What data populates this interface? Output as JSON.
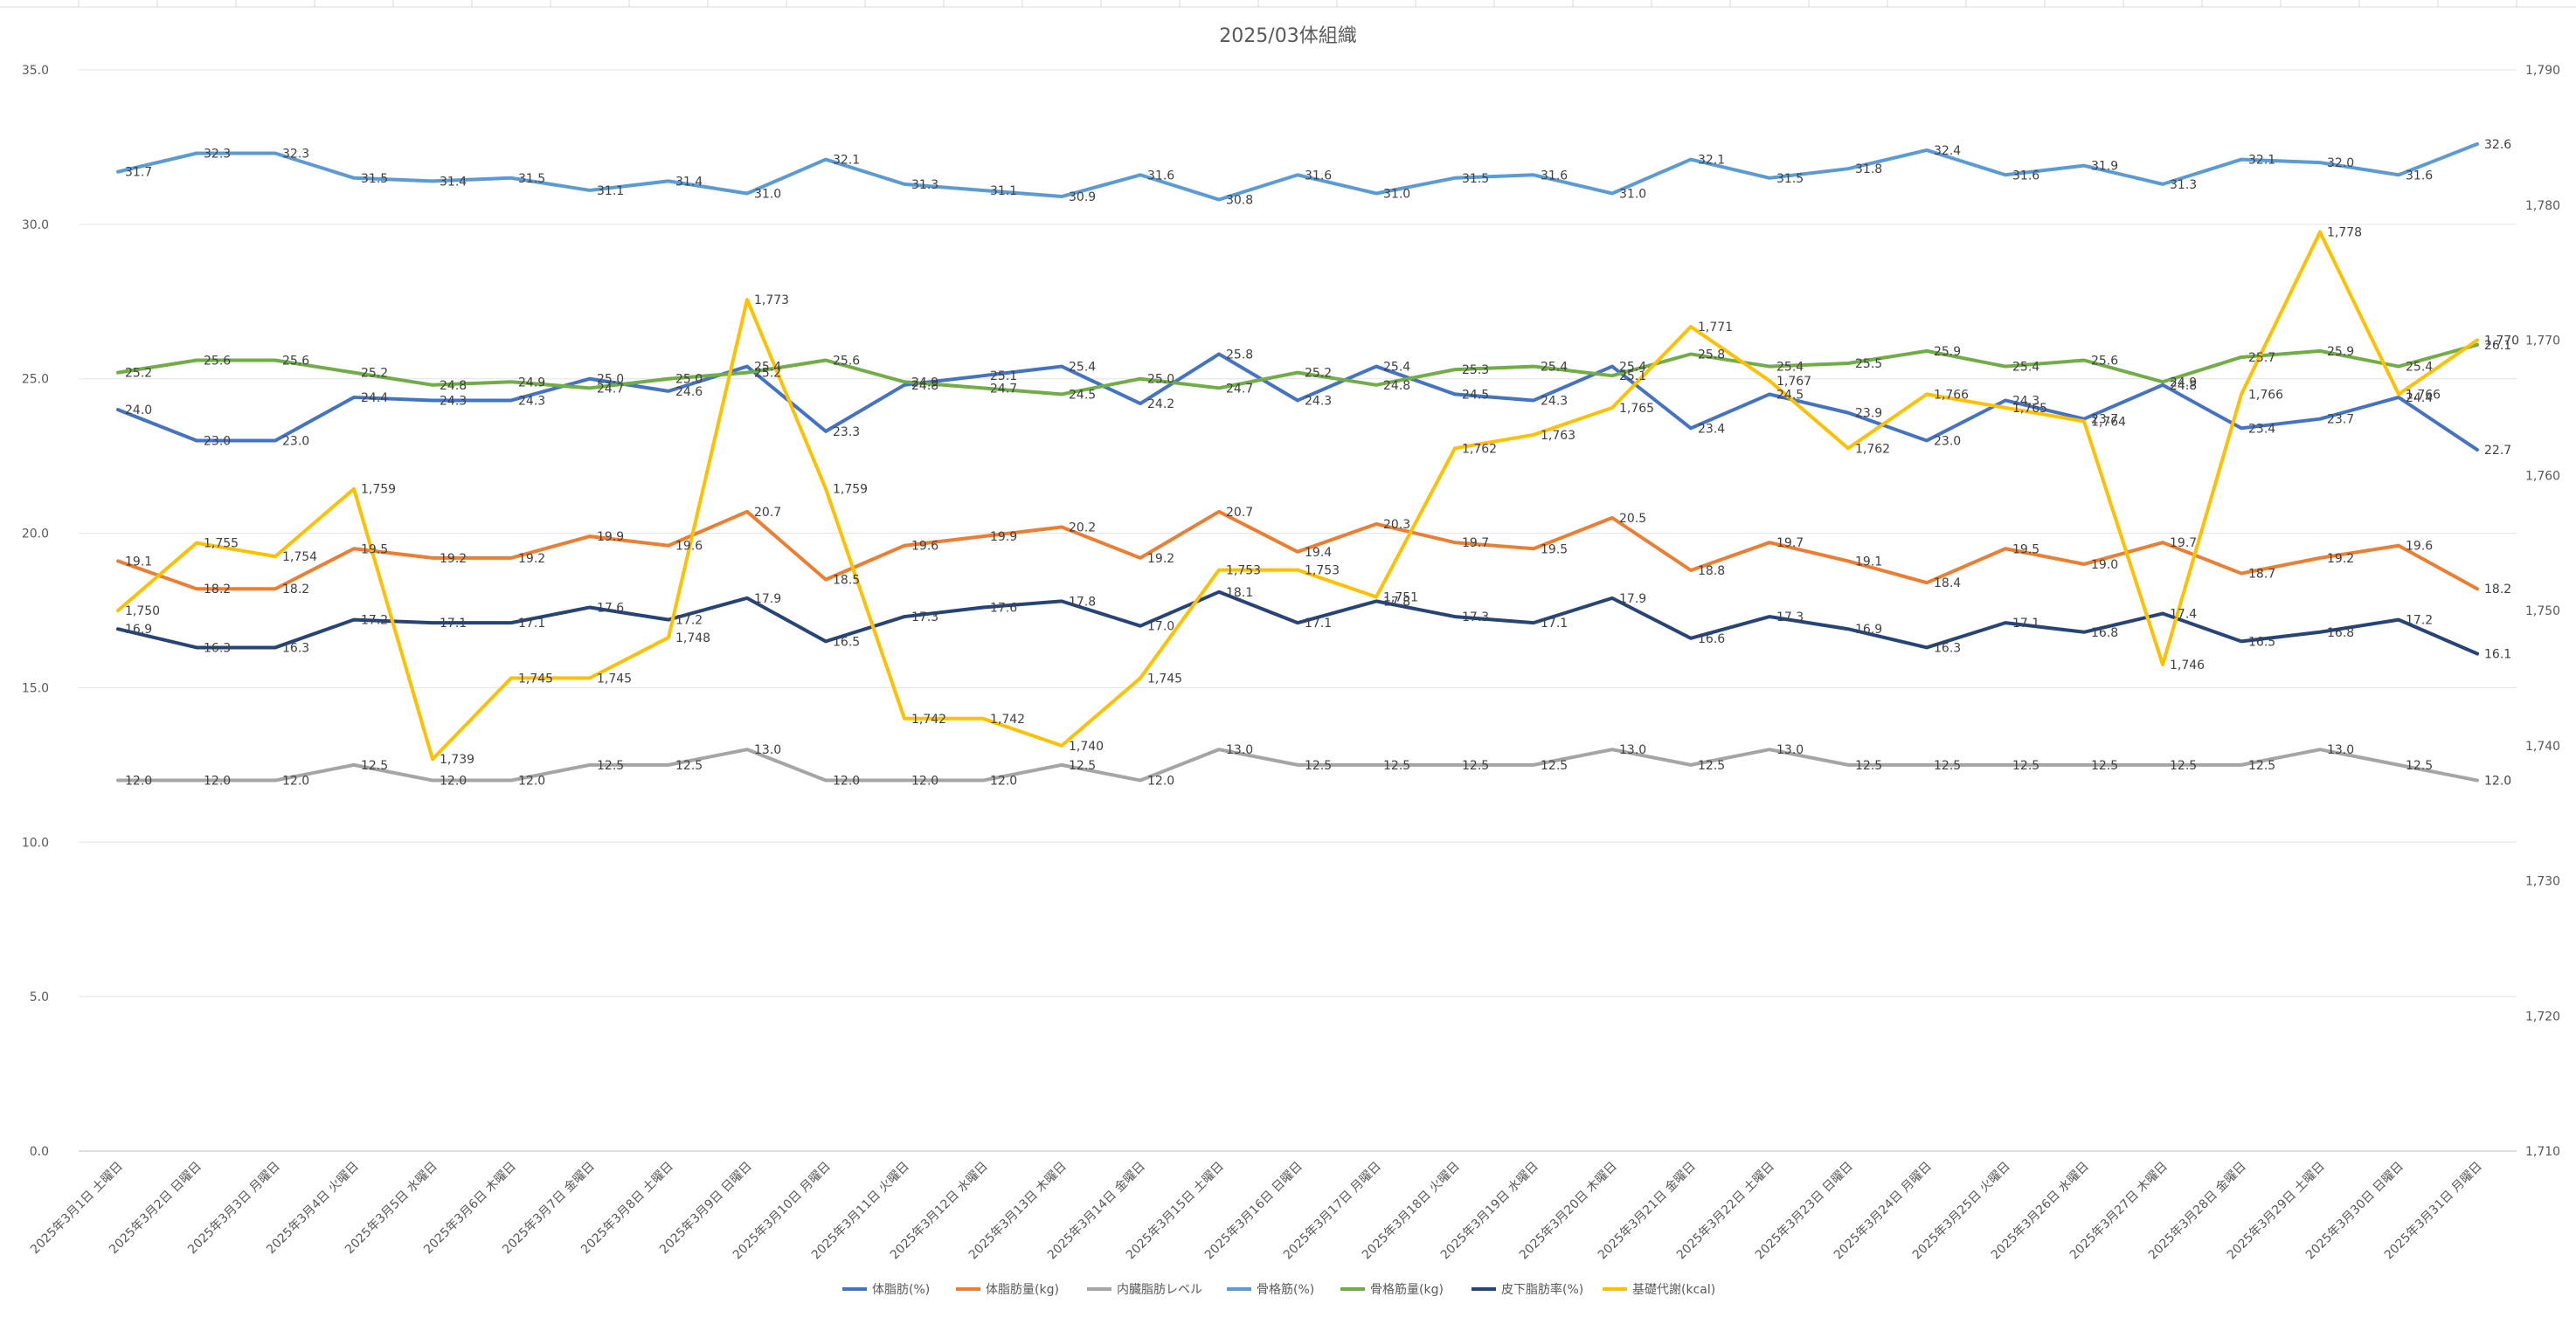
{
  "chart_data": {
    "type": "line",
    "title": "2025/03体組織",
    "categories": [
      "2025年3月1日 土曜日",
      "2025年3月2日 日曜日",
      "2025年3月3日 月曜日",
      "2025年3月4日 火曜日",
      "2025年3月5日 水曜日",
      "2025年3月6日 木曜日",
      "2025年3月7日 金曜日",
      "2025年3月8日 土曜日",
      "2025年3月9日 日曜日",
      "2025年3月10日 月曜日",
      "2025年3月11日 火曜日",
      "2025年3月12日 水曜日",
      "2025年3月13日 木曜日",
      "2025年3月14日 金曜日",
      "2025年3月15日 土曜日",
      "2025年3月16日 日曜日",
      "2025年3月17日 月曜日",
      "2025年3月18日 火曜日",
      "2025年3月19日 水曜日",
      "2025年3月20日 木曜日",
      "2025年3月21日 金曜日",
      "2025年3月22日 土曜日",
      "2025年3月23日 日曜日",
      "2025年3月24日 月曜日",
      "2025年3月25日 火曜日",
      "2025年3月26日 水曜日",
      "2025年3月27日 木曜日",
      "2025年3月28日 金曜日",
      "2025年3月29日 土曜日",
      "2025年3月30日 日曜日",
      "2025年3月31日 月曜日"
    ],
    "y_left": {
      "min": 0,
      "max": 35,
      "ticks": [
        "0.0",
        "5.0",
        "10.0",
        "15.0",
        "20.0",
        "25.0",
        "30.0",
        "35.0"
      ]
    },
    "y_right": {
      "min": 1710,
      "max": 1790,
      "ticks": [
        "1,710",
        "1,720",
        "1,730",
        "1,740",
        "1,750",
        "1,760",
        "1,770",
        "1,780",
        "1,790"
      ]
    },
    "grid": true,
    "legend_position": "bottom",
    "series": [
      {
        "name": "体脂肪(%)",
        "color": "#4472c4",
        "axis": "left",
        "values": [
          24.0,
          23.0,
          23.0,
          24.4,
          24.3,
          24.3,
          25.0,
          24.6,
          25.4,
          23.3,
          24.8,
          25.1,
          25.4,
          24.2,
          25.8,
          24.3,
          25.4,
          24.5,
          24.3,
          25.4,
          23.4,
          24.5,
          23.9,
          23.0,
          24.3,
          23.7,
          24.8,
          23.4,
          23.7,
          24.4,
          22.7
        ]
      },
      {
        "name": "体脂肪量(kg)",
        "color": "#ed7d31",
        "axis": "left",
        "values": [
          19.1,
          18.2,
          18.2,
          19.5,
          19.2,
          19.2,
          19.9,
          19.6,
          20.7,
          18.5,
          19.6,
          19.9,
          20.2,
          19.2,
          20.7,
          19.4,
          20.3,
          19.7,
          19.5,
          20.5,
          18.8,
          19.7,
          19.1,
          18.4,
          19.5,
          19.0,
          19.7,
          18.7,
          19.2,
          19.6,
          18.2
        ]
      },
      {
        "name": "内臓脂肪レベル",
        "color": "#a5a5a5",
        "axis": "left",
        "values": [
          12.0,
          12.0,
          12.0,
          12.5,
          12.0,
          12.0,
          12.5,
          12.5,
          13.0,
          12.0,
          12.0,
          12.0,
          12.5,
          12.0,
          13.0,
          12.5,
          12.5,
          12.5,
          12.5,
          13.0,
          12.5,
          13.0,
          12.5,
          12.5,
          12.5,
          12.5,
          12.5,
          12.5,
          13.0,
          12.5,
          12.0
        ]
      },
      {
        "name": "骨格筋(%)",
        "color": "#5b9bd5",
        "axis": "left",
        "values": [
          31.7,
          32.3,
          32.3,
          31.5,
          31.4,
          31.5,
          31.1,
          31.4,
          31.0,
          32.1,
          31.3,
          31.1,
          30.9,
          31.6,
          30.8,
          31.6,
          31.0,
          31.5,
          31.6,
          31.0,
          32.1,
          31.5,
          31.8,
          32.4,
          31.6,
          31.9,
          31.3,
          32.1,
          32.0,
          31.6,
          32.6
        ]
      },
      {
        "name": "骨格筋量(kg)",
        "color": "#70ad47",
        "axis": "left",
        "values": [
          25.2,
          25.6,
          25.6,
          25.2,
          24.8,
          24.9,
          24.7,
          25.0,
          25.2,
          25.6,
          24.9,
          24.7,
          24.5,
          25.0,
          24.7,
          25.2,
          24.8,
          25.3,
          25.4,
          25.1,
          25.8,
          25.4,
          25.5,
          25.9,
          25.4,
          25.6,
          24.9,
          25.7,
          25.9,
          25.4,
          26.1
        ]
      },
      {
        "name": "皮下脂肪率(%)",
        "color": "#264478",
        "axis": "left",
        "values": [
          16.9,
          16.3,
          16.3,
          17.2,
          17.1,
          17.1,
          17.6,
          17.2,
          17.9,
          16.5,
          17.3,
          17.6,
          17.8,
          17.0,
          18.1,
          17.1,
          17.8,
          17.3,
          17.1,
          17.9,
          16.6,
          17.3,
          16.9,
          16.3,
          17.1,
          16.8,
          17.4,
          16.5,
          16.8,
          17.2,
          16.1
        ]
      },
      {
        "name": "基礎代謝(kcal)",
        "color": "#ffc000",
        "axis": "right",
        "values": [
          1750,
          1755,
          1754,
          1759,
          1739,
          1745,
          1745,
          1748,
          1773,
          1759,
          1742,
          1742,
          1740,
          1745,
          1753,
          1753,
          1751,
          1762,
          1763,
          1765,
          1771,
          1767,
          1762,
          1766,
          1765,
          1764,
          1746,
          1766,
          1778,
          1766,
          1770
        ]
      }
    ]
  }
}
